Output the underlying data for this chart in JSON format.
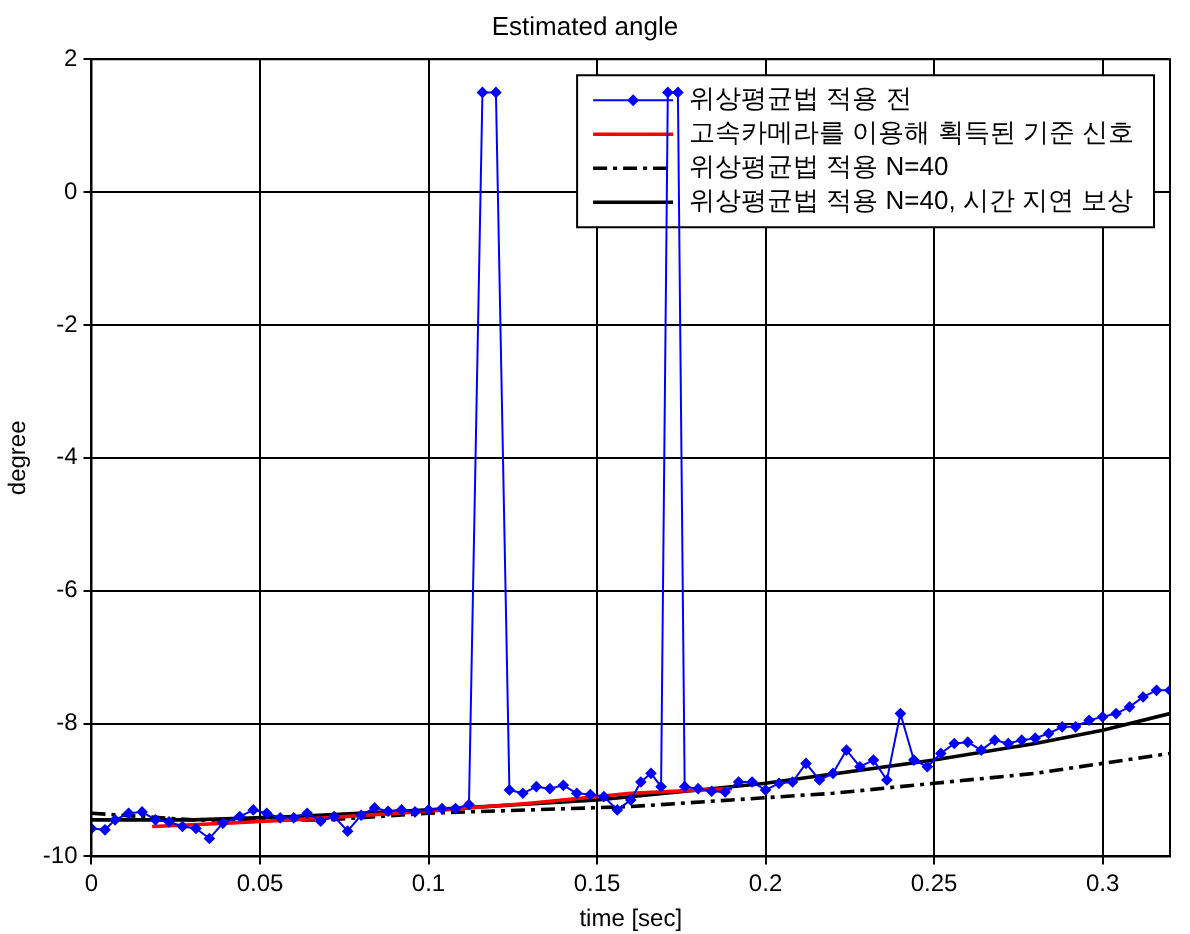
{
  "chart_data": {
    "type": "line",
    "title": "Estimated angle",
    "xlabel": "time [sec]",
    "ylabel": "degree",
    "xlim": [
      0,
      0.32
    ],
    "xticks": [
      0,
      0.05,
      0.1,
      0.15,
      0.2,
      0.25,
      0.3
    ],
    "ylim": [
      -10,
      2
    ],
    "yticks": [
      -10,
      -8,
      -6,
      -4,
      -2,
      0,
      2
    ],
    "grid": true,
    "legend": "top right",
    "series": [
      {
        "name": "위상평균법 적용 전",
        "color": "#0000ff",
        "marker": "diamond",
        "line_style": "solid",
        "x": [
          0,
          0.004,
          0.007,
          0.011,
          0.015,
          0.019,
          0.023,
          0.027,
          0.031,
          0.035,
          0.039,
          0.044,
          0.048,
          0.052,
          0.056,
          0.06,
          0.064,
          0.068,
          0.072,
          0.076,
          0.08,
          0.084,
          0.088,
          0.092,
          0.096,
          0.1,
          0.104,
          0.108,
          0.112,
          0.116,
          0.12,
          0.124,
          0.128,
          0.132,
          0.136,
          0.14,
          0.144,
          0.148,
          0.152,
          0.156,
          0.16,
          0.163,
          0.166,
          0.169,
          0.171,
          0.174,
          0.176,
          0.18,
          0.184,
          0.188,
          0.192,
          0.196,
          0.2,
          0.204,
          0.208,
          0.212,
          0.216,
          0.22,
          0.224,
          0.228,
          0.232,
          0.236,
          0.24,
          0.244,
          0.248,
          0.252,
          0.256,
          0.26,
          0.264,
          0.268,
          0.272,
          0.276,
          0.28,
          0.284,
          0.288,
          0.292,
          0.296,
          0.3,
          0.304,
          0.308,
          0.312,
          0.316,
          0.32
        ],
        "values": [
          -9.58,
          -9.6,
          -9.45,
          -9.35,
          -9.33,
          -9.45,
          -9.48,
          -9.55,
          -9.58,
          -9.73,
          -9.5,
          -9.4,
          -9.3,
          -9.35,
          -9.42,
          -9.42,
          -9.35,
          -9.47,
          -9.4,
          -9.62,
          -9.38,
          -9.27,
          -9.32,
          -9.3,
          -9.33,
          -9.3,
          -9.28,
          -9.28,
          -9.22,
          1.5,
          1.5,
          -9.0,
          -9.05,
          -8.95,
          -8.98,
          -8.93,
          -9.05,
          -9.07,
          -9.1,
          -9.3,
          -9.15,
          -8.88,
          -8.75,
          -8.95,
          1.5,
          1.5,
          -8.95,
          -8.98,
          -9.02,
          -9.03,
          -8.88,
          -8.88,
          -9.0,
          -8.9,
          -8.88,
          -8.6,
          -8.85,
          -8.75,
          -8.4,
          -8.65,
          -8.55,
          -8.85,
          -7.85,
          -8.55,
          -8.65,
          -8.45,
          -8.3,
          -8.28,
          -8.4,
          -8.25,
          -8.3,
          -8.25,
          -8.22,
          -8.15,
          -8.05,
          -8.05,
          -7.95,
          -7.9,
          -7.85,
          -7.75,
          -7.6,
          -7.5,
          -7.5
        ]
      },
      {
        "name": "고속카메라를 이용해 획득된 기준 신호",
        "color": "#ff0000",
        "marker": "none",
        "line_style": "solid",
        "x": [
          0.018,
          0.04,
          0.06,
          0.1,
          0.13,
          0.16,
          0.19
        ],
        "values": [
          -9.55,
          -9.5,
          -9.45,
          -9.32,
          -9.2,
          -9.05,
          -8.98
        ]
      },
      {
        "name": "위상평균법 적용 N=40",
        "color": "#000000",
        "marker": "none",
        "line_style": "dashed",
        "x": [
          0,
          0.03,
          0.07,
          0.1,
          0.13,
          0.16,
          0.19,
          0.22,
          0.25,
          0.28,
          0.3,
          0.32
        ],
        "values": [
          -9.35,
          -9.45,
          -9.45,
          -9.35,
          -9.3,
          -9.25,
          -9.15,
          -9.05,
          -8.9,
          -8.75,
          -8.6,
          -8.45
        ]
      },
      {
        "name": "위상평균법 적용 N=40, 시간 지연 보상",
        "color": "#000000",
        "marker": "none",
        "line_style": "solid",
        "x": [
          0,
          0.03,
          0.06,
          0.1,
          0.15,
          0.2,
          0.25,
          0.28,
          0.3,
          0.32
        ],
        "values": [
          -9.45,
          -9.45,
          -9.4,
          -9.3,
          -9.15,
          -8.9,
          -8.55,
          -8.3,
          -8.1,
          -7.85
        ]
      }
    ]
  }
}
